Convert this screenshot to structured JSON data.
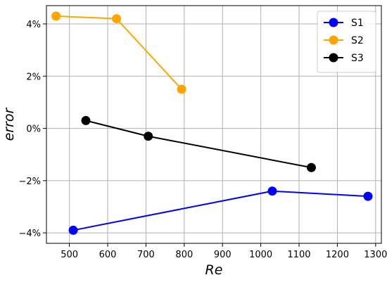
{
  "chart_data": {
    "type": "line",
    "xlabel": "Re",
    "ylabel": "error",
    "xlim": [
      440,
      1315
    ],
    "ylim": [
      -4.4,
      4.7
    ],
    "xticks": [
      500,
      600,
      700,
      800,
      900,
      1000,
      1100,
      1200,
      1300
    ],
    "xtick_labels": [
      "500",
      "600",
      "700",
      "800",
      "900",
      "1000",
      "1100",
      "1200",
      "1300"
    ],
    "yticks": [
      -4,
      -2,
      0,
      2,
      4
    ],
    "ytick_labels": [
      "−4%",
      "−2%",
      "0%",
      "2%",
      "4%"
    ],
    "grid": true,
    "legend_position": "top-right",
    "series": [
      {
        "name": "S1",
        "color": "#0000ff",
        "x": [
          510,
          1030,
          1280
        ],
        "y": [
          -3.9,
          -2.4,
          -2.6
        ]
      },
      {
        "name": "S2",
        "color": "#ffa500",
        "x": [
          465,
          623,
          793
        ],
        "y": [
          4.3,
          4.2,
          1.5
        ]
      },
      {
        "name": "S3",
        "color": "#000000",
        "x": [
          543,
          706,
          1132
        ],
        "y": [
          0.3,
          -0.3,
          -1.5
        ]
      }
    ]
  }
}
